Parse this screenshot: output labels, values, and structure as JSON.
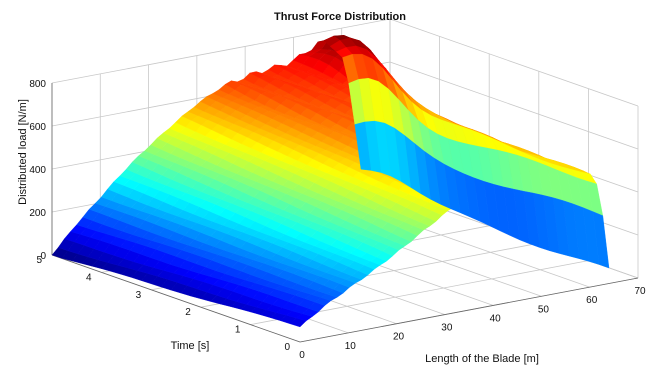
{
  "chart_data": {
    "type": "surface3d",
    "title": "Thrust Force Distribution",
    "xlabel": "Length of the Blade [m]",
    "ylabel": "Time [s]",
    "zlabel": "Distributed load [N/m]",
    "xlim": [
      0,
      70
    ],
    "ylim": [
      0,
      5
    ],
    "zlim": [
      0,
      800
    ],
    "xticks": [
      "0",
      "10",
      "20",
      "30",
      "40",
      "50",
      "60",
      "70"
    ],
    "yticks": [
      "0",
      "1",
      "2",
      "3",
      "4",
      "5"
    ],
    "zticks": [
      "0",
      "200",
      "400",
      "600",
      "800"
    ],
    "grid": true,
    "colormap": "jet",
    "blade_length_m": [
      0,
      5,
      10,
      15,
      20,
      25,
      30,
      35,
      40,
      45,
      50,
      55,
      60,
      62,
      64
    ],
    "load_at_time_0_N_per_m": [
      70,
      145,
      205,
      265,
      330,
      400,
      470,
      530,
      570,
      585,
      580,
      560,
      525,
      470,
      60
    ],
    "load_at_time_5_N_per_m": [
      0,
      120,
      225,
      330,
      420,
      500,
      575,
      630,
      660,
      675,
      670,
      640,
      540,
      380,
      80
    ],
    "peak_load_N_per_m": 790,
    "peak_location": {
      "blade_length_m": 58,
      "time_s": 4.5
    }
  }
}
